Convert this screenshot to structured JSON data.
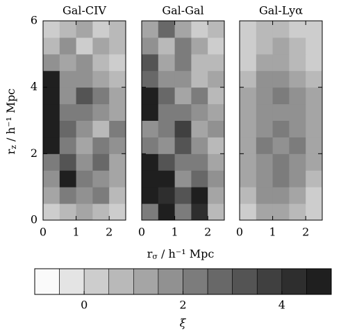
{
  "chart_data": [
    {
      "type": "heatmap",
      "title": "Gal-CIV",
      "xbins": [
        0,
        0.5,
        1,
        1.5,
        2,
        2.5
      ],
      "ybins": [
        0,
        0.5,
        1,
        1.5,
        2,
        2.5,
        3,
        3.5,
        4,
        4.5,
        5,
        5.5,
        6
      ],
      "xlim": [
        0,
        2.5
      ],
      "ylim": [
        0,
        6
      ],
      "xticks": [
        0,
        1,
        2
      ],
      "yticks": [
        0,
        2,
        4,
        6
      ],
      "values": [
        [
          0,
          0.5,
          1,
          0.5,
          0
        ],
        [
          1,
          2,
          1.5,
          2,
          0.5
        ],
        [
          1.5,
          4.5,
          2,
          1.5,
          1
        ],
        [
          2,
          3,
          1.5,
          2.5,
          1
        ],
        [
          4.5,
          2,
          1,
          2,
          1.5
        ],
        [
          4.5,
          2.5,
          1.5,
          0.5,
          2
        ],
        [
          4.5,
          2,
          2,
          1.5,
          1
        ],
        [
          4.5,
          1.5,
          3,
          2,
          1
        ],
        [
          4.5,
          1.5,
          1.5,
          1,
          0.5
        ],
        [
          1.5,
          1,
          1.5,
          0.5,
          0
        ],
        [
          0.5,
          1.5,
          0,
          1,
          0.5
        ],
        [
          0,
          0.5,
          1,
          0,
          0.5
        ]
      ]
    },
    {
      "type": "heatmap",
      "title": "Gal-Gal",
      "xbins": [
        0,
        0.5,
        1,
        1.5,
        2,
        2.5
      ],
      "ybins": [
        0,
        0.5,
        1,
        1.5,
        2,
        2.5,
        3,
        3.5,
        4,
        4.5,
        5,
        5.5,
        6
      ],
      "xlim": [
        0,
        2.5
      ],
      "ylim": [
        0,
        6
      ],
      "xticks": [
        0,
        1,
        2
      ],
      "yticks": [
        0,
        2,
        4,
        6
      ],
      "values": [
        [
          2,
          4.5,
          2,
          4,
          0.5
        ],
        [
          4.5,
          4,
          3,
          4.5,
          1
        ],
        [
          4.5,
          4.5,
          1.5,
          2.5,
          1.5
        ],
        [
          4.5,
          3,
          2,
          2,
          1
        ],
        [
          2,
          1.5,
          3,
          1.5,
          0.5
        ],
        [
          1.5,
          2,
          3.5,
          1,
          1.5
        ],
        [
          4.5,
          2,
          2,
          1.5,
          1
        ],
        [
          4.5,
          2.5,
          1,
          2,
          0.5
        ],
        [
          2.5,
          1.5,
          1.5,
          0.5,
          1
        ],
        [
          3,
          1,
          2,
          0.5,
          0.5
        ],
        [
          1.5,
          0.5,
          2,
          1,
          0
        ],
        [
          1,
          2.5,
          1,
          0,
          0.5
        ]
      ]
    },
    {
      "type": "heatmap",
      "title": "Gal-Lyα",
      "xbins": [
        0,
        0.5,
        1,
        1.5,
        2,
        2.5
      ],
      "ybins": [
        0,
        0.5,
        1,
        1.5,
        2,
        2.5,
        3,
        3.5,
        4,
        4.5,
        5,
        5.5,
        6
      ],
      "xlim": [
        0,
        2.5
      ],
      "ylim": [
        0,
        6
      ],
      "xticks": [
        0,
        1,
        2
      ],
      "yticks": [
        0,
        2,
        4,
        6
      ],
      "values": [
        [
          0,
          1,
          1,
          0.5,
          0
        ],
        [
          0.5,
          1.5,
          1.5,
          1,
          0
        ],
        [
          1,
          1.5,
          2,
          1.5,
          0.5
        ],
        [
          1,
          1.5,
          2,
          1.5,
          1
        ],
        [
          1,
          2,
          1.5,
          2,
          1
        ],
        [
          1,
          1.5,
          2,
          1.5,
          1
        ],
        [
          1,
          1.5,
          1.5,
          1.5,
          1
        ],
        [
          1,
          1.5,
          2,
          1.5,
          1
        ],
        [
          0.5,
          1.5,
          1.5,
          1,
          0.5
        ],
        [
          0,
          1,
          1,
          0.5,
          0
        ],
        [
          0,
          0.5,
          1,
          0.5,
          0
        ],
        [
          0,
          0.5,
          0.5,
          0,
          0
        ]
      ]
    }
  ],
  "xlabel": {
    "symbol": "r",
    "subscript": "σ",
    "unit": " / h⁻¹ Mpc"
  },
  "ylabel": {
    "symbol": "r",
    "subscript": "z",
    "unit": " / h⁻¹ Mpc"
  },
  "colorbar": {
    "label": "ξ",
    "xlim": [
      -1,
      5
    ],
    "xticks": [
      0,
      2,
      4
    ],
    "bins": [
      -1,
      -0.5,
      0,
      0.5,
      1,
      1.5,
      2,
      2.5,
      3,
      3.5,
      4,
      4.5,
      5
    ],
    "colors": [
      "#fafafa",
      "#e4e4e4",
      "#cdcdcd",
      "#b9b9b9",
      "#a5a5a5",
      "#919191",
      "#7c7c7c",
      "#686868",
      "#545454",
      "#404040",
      "#2e2e2e",
      "#1f1f1f"
    ]
  }
}
